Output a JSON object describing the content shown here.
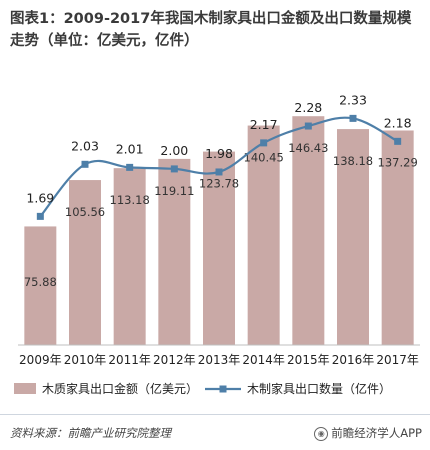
{
  "chart_data": {
    "type": "bar+line",
    "title": "图表1：2009-2017年我国木制家具出口金额及出口数量规模走势（单位：亿美元，亿件）",
    "categories": [
      "2009年",
      "2010年",
      "2011年",
      "2012年",
      "2013年",
      "2014年",
      "2015年",
      "2016年",
      "2017年"
    ],
    "series": [
      {
        "name": "木质家具出口金额（亿美元）",
        "type": "bar",
        "axis": "left",
        "values": [
          75.88,
          105.56,
          113.18,
          119.11,
          123.78,
          140.45,
          146.43,
          138.18,
          137.29
        ],
        "color": "#c9a9a6"
      },
      {
        "name": "木制家具出口数量（亿件）",
        "type": "line",
        "axis": "right",
        "values": [
          1.69,
          2.03,
          2.01,
          2.0,
          1.98,
          2.17,
          2.28,
          2.33,
          2.18
        ],
        "color": "#4e7fa8"
      }
    ],
    "bar_ylim": [
      0,
      160
    ],
    "line_ylim": [
      0.85,
      2.45
    ],
    "grid": false,
    "legend_position": "bottom"
  },
  "footer": {
    "source": "资料来源：前瞻产业研究院整理",
    "brand": "前瞻经济学人APP"
  }
}
